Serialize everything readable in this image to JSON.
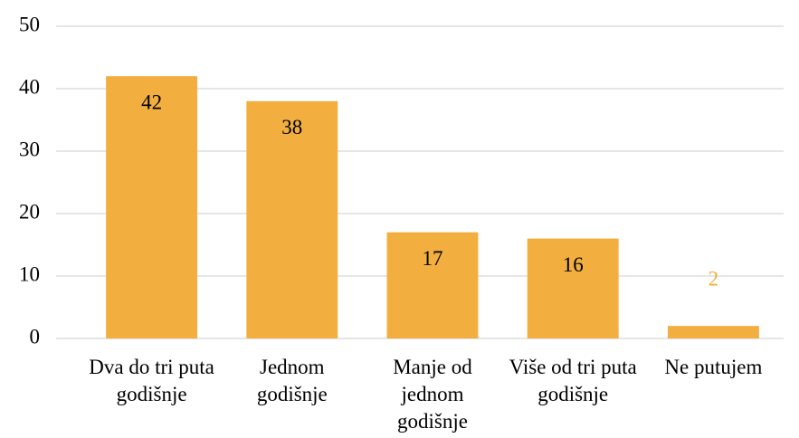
{
  "chart_data": {
    "type": "bar",
    "categories": [
      "Dva do tri puta godišnje",
      "Jednom godišnje",
      "Manje od jednom godišnje",
      "Više od tri puta godišnje",
      "Ne putujem"
    ],
    "values": [
      42,
      38,
      17,
      16,
      2
    ],
    "color": "#f2ae3f",
    "ylim": [
      0,
      50
    ],
    "yticks": [
      0,
      10,
      20,
      30,
      40,
      50
    ],
    "grid": true
  }
}
